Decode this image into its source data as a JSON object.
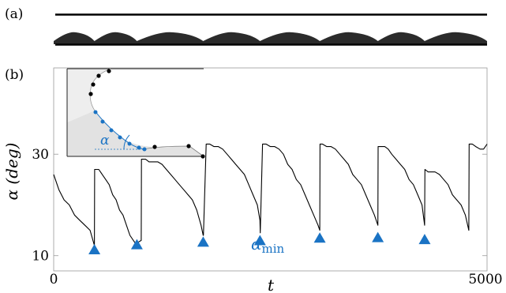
{
  "panel_a_label": "(a)",
  "panel_b_label": "(b)",
  "colors": {
    "line": "#000000",
    "accent": "#1a73c4",
    "inset_fill": "#e6e6e6",
    "panel_a_fill": "#2b2b2b"
  },
  "chart_data": {
    "type": "line",
    "xlabel": "t",
    "ylabel": "α (deg)",
    "xlim": [
      0,
      5000
    ],
    "ylim": [
      7,
      47
    ],
    "x_ticks": [
      {
        "value": 0,
        "label": "0"
      },
      {
        "value": 5000,
        "label": "5000"
      }
    ],
    "y_ticks": [
      {
        "value": 10,
        "label": "10"
      },
      {
        "value": 30,
        "label": "30"
      }
    ],
    "grid": false,
    "series": [
      {
        "x": [
          0,
          60,
          120,
          180,
          240,
          300,
          360,
          420,
          470,
          473,
          520,
          560,
          600,
          640,
          660,
          680,
          720,
          760,
          800,
          840,
          880,
          940,
          960,
          1010,
          1013,
          1060,
          1100,
          1150,
          1200,
          1250,
          1300,
          1350,
          1400,
          1450,
          1500,
          1550,
          1600,
          1650,
          1700,
          1725,
          1728,
          1760,
          1800,
          1850,
          1900,
          1950,
          2000,
          2050,
          2100,
          2150,
          2200,
          2250,
          2300,
          2350,
          2380,
          2383,
          2410,
          2450,
          2500,
          2550,
          2600,
          2650,
          2700,
          2750,
          2800,
          2850,
          2900,
          2950,
          3000,
          3050,
          3070,
          3073,
          3100,
          3150,
          3200,
          3250,
          3300,
          3350,
          3400,
          3450,
          3500,
          3550,
          3600,
          3650,
          3700,
          3740,
          3743,
          3780,
          3820,
          3860,
          3900,
          3950,
          4000,
          4050,
          4100,
          4150,
          4200,
          4250,
          4280,
          4283,
          4320,
          4360,
          4400,
          4450,
          4500,
          4550,
          4600,
          4650,
          4700,
          4750,
          4790,
          4793,
          4830,
          4870,
          4920,
          4960,
          5000
        ],
        "y": [
          26,
          23,
          21,
          20,
          18,
          17,
          16,
          15,
          12,
          27,
          27,
          26,
          25,
          24,
          23,
          22,
          21,
          19,
          18,
          16,
          14,
          12.5,
          12.5,
          13,
          29,
          29,
          28.5,
          28.5,
          28.5,
          28,
          27,
          26,
          25,
          24,
          23,
          22,
          21,
          19,
          16,
          14,
          14,
          32,
          32,
          31.5,
          31.5,
          31,
          30,
          29,
          28,
          27,
          26,
          24,
          22,
          20,
          17,
          14.5,
          32,
          32,
          31.5,
          31.5,
          31,
          30,
          28,
          27,
          25,
          24,
          22,
          20,
          18,
          16,
          15,
          32,
          32,
          31.5,
          31.5,
          31,
          30,
          29,
          28,
          26,
          25,
          24,
          22,
          20,
          18,
          16,
          31.5,
          31.5,
          31.5,
          31,
          30,
          29,
          28,
          27,
          25,
          24,
          22,
          20,
          16,
          27,
          26.5,
          26.5,
          26.5,
          26,
          25,
          24,
          22,
          21,
          20,
          18,
          15,
          32,
          32,
          31.5,
          31,
          31,
          32
        ]
      }
    ],
    "markers": {
      "x": [
        470,
        960,
        1725,
        2380,
        3070,
        3740,
        4280
      ],
      "y": [
        11.2,
        12.2,
        12.7,
        13.0,
        13.5,
        13.6,
        13.2
      ]
    },
    "annotations": [
      {
        "text_main": "α",
        "text_sub": "min"
      }
    ],
    "inset": {
      "angle_label": "α"
    }
  }
}
